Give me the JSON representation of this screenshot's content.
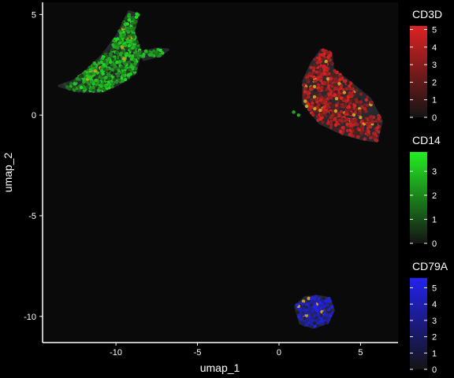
{
  "chart_data": {
    "type": "scatter",
    "title": "",
    "xlabel": "umap_1",
    "ylabel": "umap_2",
    "xlim": [
      -14.5,
      7.3
    ],
    "ylim": [
      -11.3,
      5.6
    ],
    "xticks": [
      -10,
      -5,
      0,
      5
    ],
    "yticks": [
      5,
      0,
      -5,
      -10
    ],
    "xtick_labels": [
      "-10",
      "-5",
      "0",
      "5"
    ],
    "ytick_labels": [
      "5",
      "0",
      "-5",
      "-10"
    ],
    "grid": false,
    "background": "#0a0a0a",
    "clusters": [
      {
        "gene": "CD14",
        "color": "#22dd22",
        "point_count": 520,
        "max_expression": 3.8,
        "outline": [
          [
            -13.5,
            1.45
          ],
          [
            -12.6,
            1.7
          ],
          [
            -11.7,
            2.3
          ],
          [
            -10.8,
            3.0
          ],
          [
            -9.9,
            4.0
          ],
          [
            -9.2,
            5.15
          ],
          [
            -8.6,
            5.0
          ],
          [
            -8.9,
            4.2
          ],
          [
            -8.5,
            3.1
          ],
          [
            -8.8,
            2.1
          ],
          [
            -9.9,
            1.5
          ],
          [
            -11.0,
            1.15
          ],
          [
            -12.4,
            1.2
          ]
        ]
      },
      {
        "gene": "CD14",
        "color": "#22dd22",
        "point_count": 25,
        "max_expression": 3.8,
        "outline": [
          [
            -8.6,
            3.1
          ],
          [
            -7.5,
            3.3
          ],
          [
            -6.8,
            3.25
          ],
          [
            -7.3,
            2.95
          ],
          [
            -8.3,
            2.75
          ]
        ]
      },
      {
        "gene": "CD3D",
        "color": "#dd2222",
        "point_count": 650,
        "max_expression": 5.2,
        "outline": [
          [
            1.5,
            1.7
          ],
          [
            2.0,
            2.6
          ],
          [
            2.6,
            3.25
          ],
          [
            3.2,
            3.1
          ],
          [
            3.3,
            2.3
          ],
          [
            4.4,
            1.6
          ],
          [
            5.6,
            0.8
          ],
          [
            6.3,
            -0.3
          ],
          [
            6.0,
            -1.3
          ],
          [
            5.1,
            -1.2
          ],
          [
            3.8,
            -0.9
          ],
          [
            2.5,
            -0.4
          ],
          [
            1.5,
            0.6
          ]
        ]
      },
      {
        "gene": "CD79A",
        "color": "#2222ee",
        "point_count": 240,
        "max_expression": 5.6,
        "outline": [
          [
            1.0,
            -9.5
          ],
          [
            1.6,
            -9.05
          ],
          [
            2.4,
            -9.0
          ],
          [
            3.1,
            -9.1
          ],
          [
            3.35,
            -9.7
          ],
          [
            3.0,
            -10.3
          ],
          [
            2.1,
            -10.55
          ],
          [
            1.3,
            -10.35
          ]
        ]
      }
    ],
    "stray_points": [
      {
        "x": 0.9,
        "y": 0.15,
        "gene": "CD14"
      },
      {
        "x": 1.2,
        "y": 0.0,
        "gene": "CD14"
      }
    ],
    "legends": [
      {
        "title": "CD3D",
        "color_low": "#141414",
        "color_high": "#dd2222",
        "min": 0,
        "max": 5.2,
        "ticks": [
          0,
          1,
          2,
          3,
          4,
          5
        ],
        "tick_labels": [
          "0",
          "1",
          "2",
          "3",
          "4",
          "5"
        ]
      },
      {
        "title": "CD14",
        "color_low": "#141414",
        "color_high": "#22ee22",
        "min": 0,
        "max": 3.8,
        "ticks": [
          0,
          1,
          2,
          3
        ],
        "tick_labels": [
          "0",
          "1",
          "2",
          "3"
        ]
      },
      {
        "title": "CD79A",
        "color_low": "#141414",
        "color_high": "#2222ee",
        "min": 0,
        "max": 5.6,
        "ticks": [
          0,
          1,
          2,
          3,
          4,
          5
        ],
        "tick_labels": [
          "0",
          "1",
          "2",
          "3",
          "4",
          "5"
        ]
      }
    ]
  }
}
